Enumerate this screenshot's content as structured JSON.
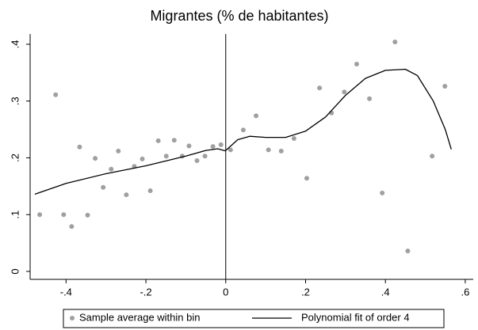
{
  "chart_data": {
    "type": "scatter",
    "title": "Migrantes (% de habitantes)",
    "xlim": [
      -0.49,
      0.62
    ],
    "ylim": [
      -0.014,
      0.418
    ],
    "xticks": [
      {
        "value": -0.4,
        "label": "-.4"
      },
      {
        "value": -0.2,
        "label": "-.2"
      },
      0,
      {
        "value": 0.2,
        "label": ".2"
      },
      {
        "value": 0.4,
        "label": ".4"
      },
      {
        "value": 0.6,
        "label": ".6"
      }
    ],
    "yticks": [
      0,
      {
        "value": 0.1,
        "label": ".1"
      },
      {
        "value": 0.2,
        "label": ".2"
      },
      {
        "value": 0.3,
        "label": ".3"
      },
      {
        "value": 0.4,
        "label": ".4"
      }
    ],
    "xline": 0,
    "grid": false,
    "legend": "bottom",
    "series": [
      {
        "name": "Sample average within bin",
        "type": "scatter",
        "color": "#a0a0a0",
        "x": [
          -0.466,
          -0.426,
          -0.406,
          -0.386,
          -0.366,
          -0.346,
          -0.327,
          -0.307,
          -0.287,
          -0.269,
          -0.249,
          -0.229,
          -0.209,
          -0.189,
          -0.169,
          -0.149,
          -0.129,
          -0.109,
          -0.092,
          -0.072,
          -0.052,
          -0.032,
          -0.012,
          0.012,
          0.044,
          0.076,
          0.107,
          0.139,
          0.171,
          0.203,
          0.235,
          0.265,
          0.297,
          0.328,
          0.36,
          0.392,
          0.424,
          0.456,
          0.517,
          0.549
        ],
        "values": [
          0.1,
          0.311,
          0.1,
          0.079,
          0.219,
          0.099,
          0.199,
          0.148,
          0.18,
          0.212,
          0.135,
          0.185,
          0.198,
          0.142,
          0.23,
          0.203,
          0.231,
          0.203,
          0.221,
          0.195,
          0.203,
          0.22,
          0.223,
          0.214,
          0.249,
          0.274,
          0.214,
          0.212,
          0.234,
          0.164,
          0.323,
          0.279,
          0.316,
          0.365,
          0.304,
          0.138,
          0.404,
          0.036,
          0.203,
          0.326
        ]
      },
      {
        "name": "Polynomial fit of order 4",
        "type": "line",
        "color": "#000000",
        "x": [
          -0.478,
          -0.4,
          -0.3,
          -0.2,
          -0.1,
          -0.05,
          -0.02,
          0,
          0,
          0,
          0.03,
          0.06,
          0.1,
          0.15,
          0.2,
          0.25,
          0.3,
          0.35,
          0.4,
          0.45,
          0.48,
          0.52,
          0.55,
          0.565
        ],
        "values": [
          0.136,
          0.155,
          0.172,
          0.186,
          0.203,
          0.213,
          0.216,
          0.212,
          null,
          0.213,
          0.232,
          0.238,
          0.236,
          0.236,
          0.247,
          0.272,
          0.31,
          0.34,
          0.354,
          0.356,
          0.345,
          0.3,
          0.25,
          0.215
        ]
      }
    ]
  }
}
